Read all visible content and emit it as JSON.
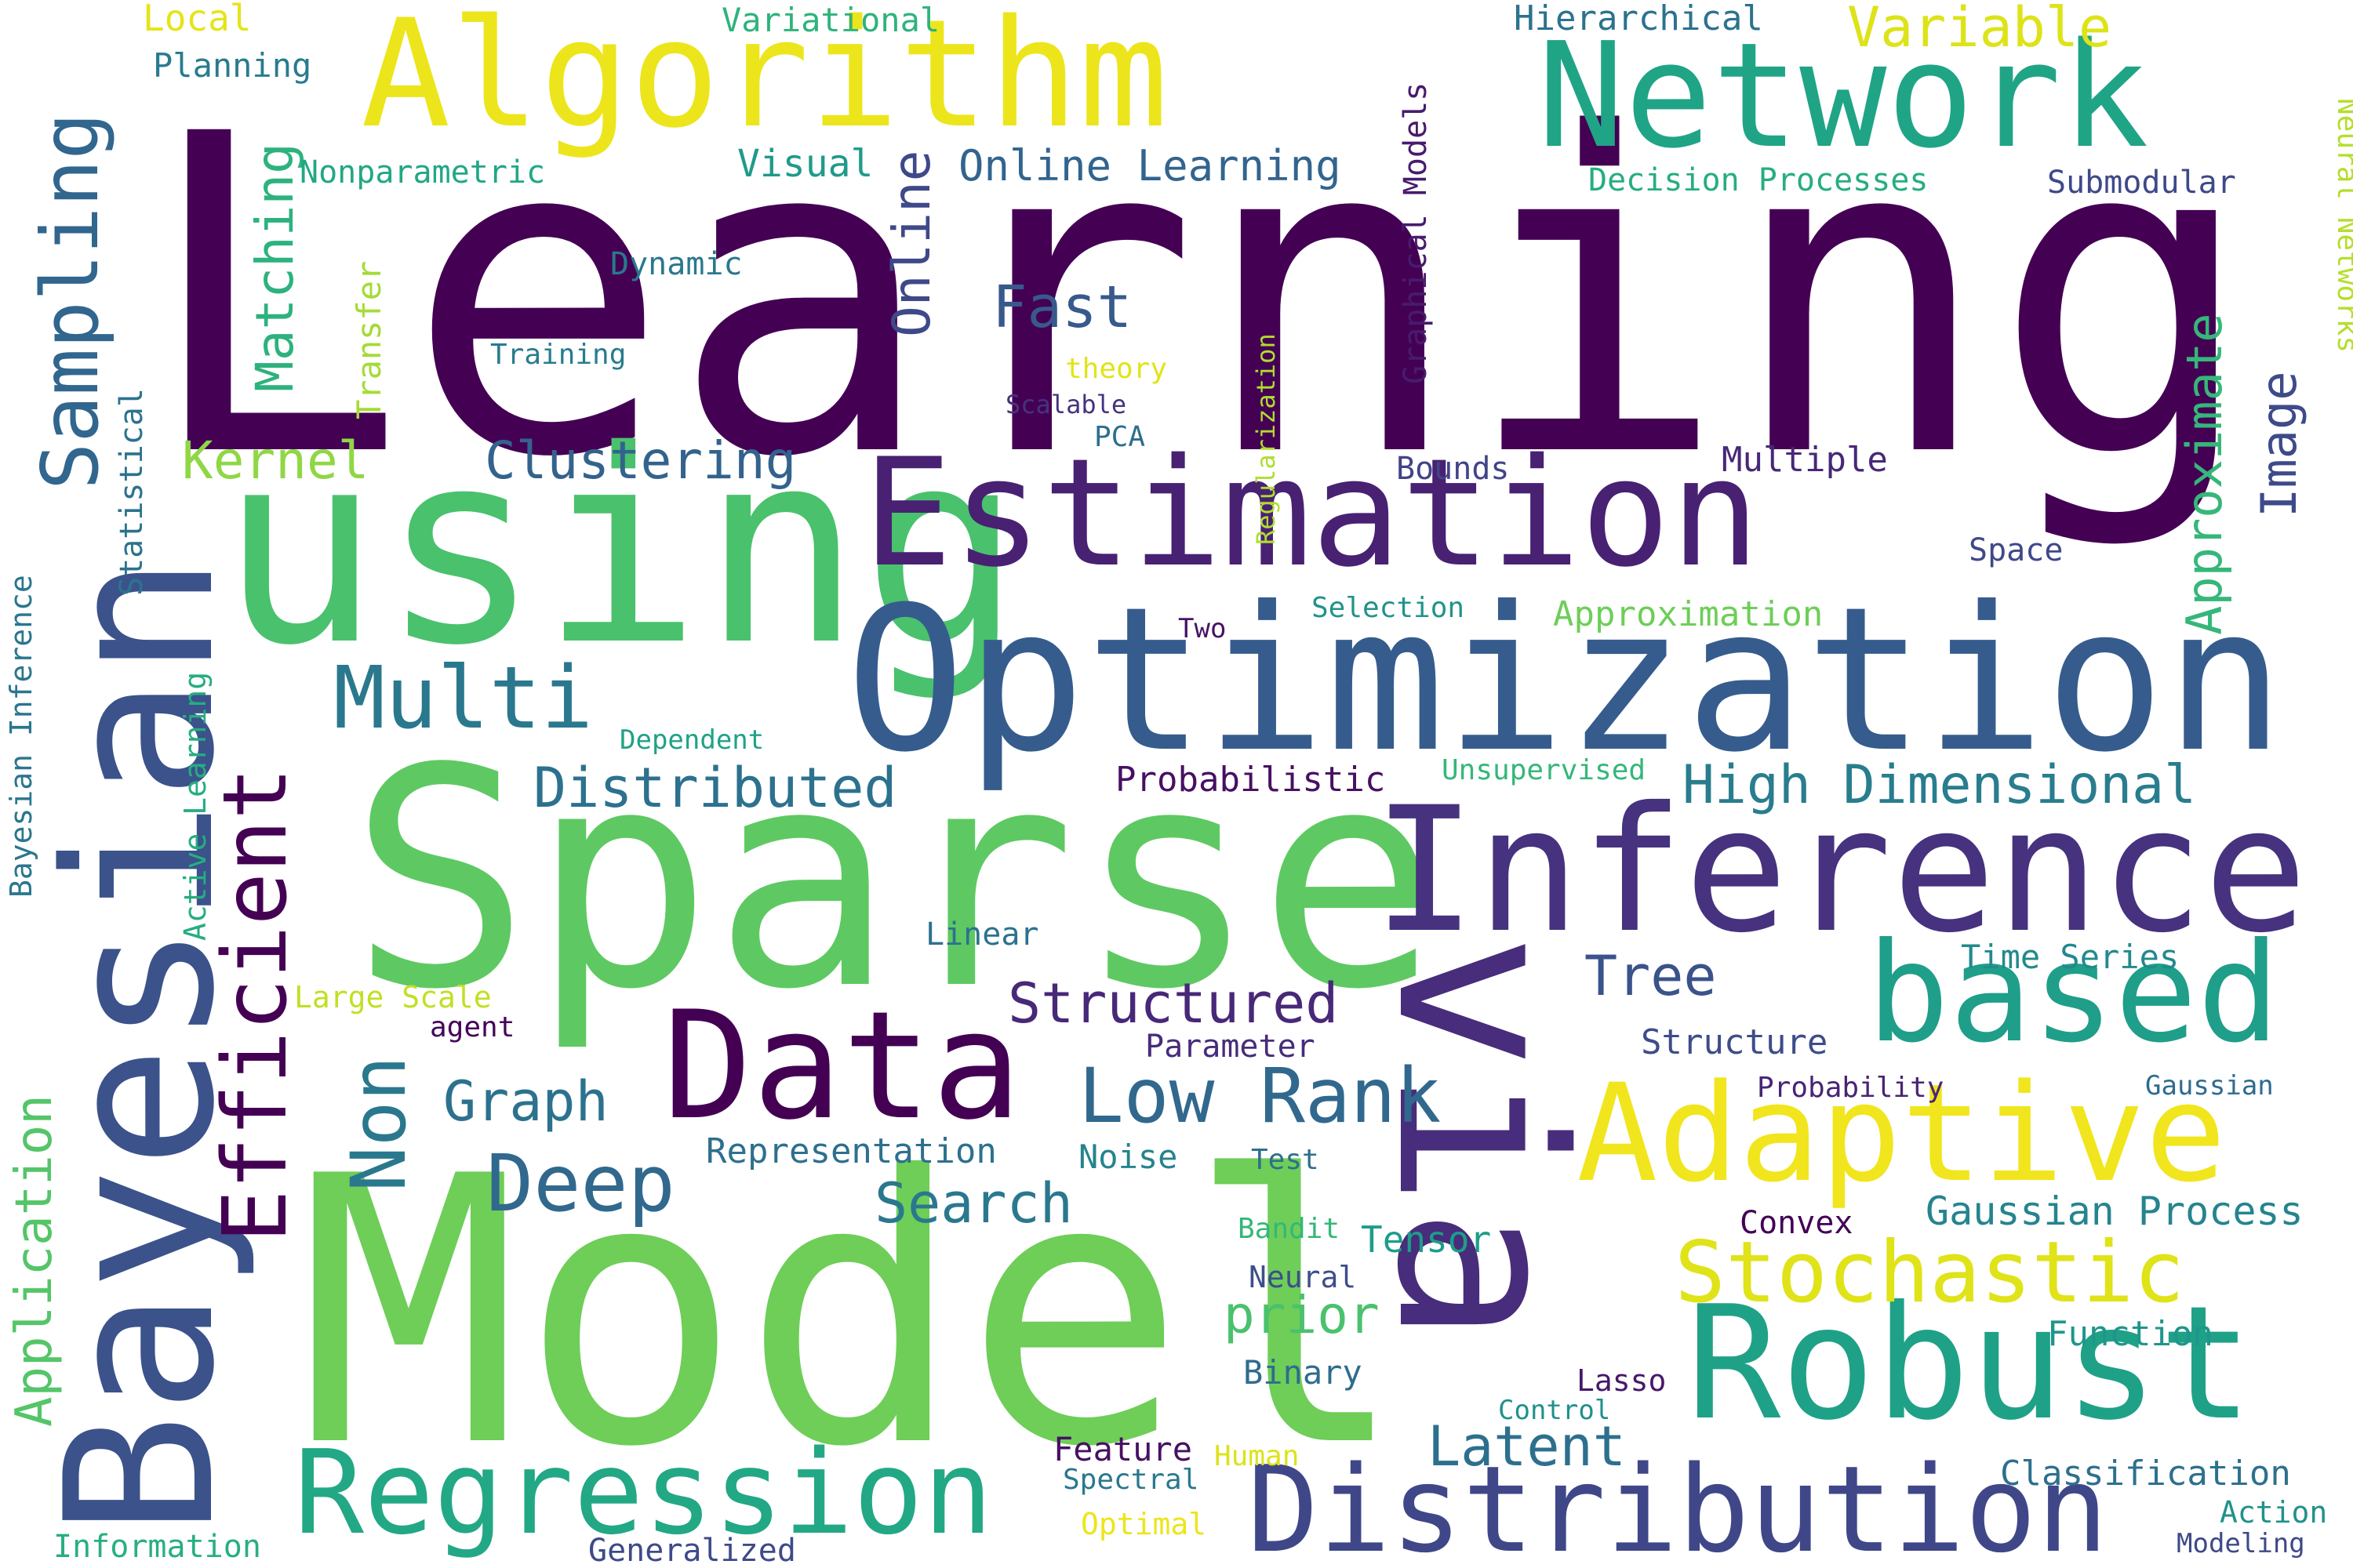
{
  "words": [
    {
      "text": "Learning",
      "color": "#440154"
    },
    {
      "text": "Model",
      "color": "#6ece58"
    },
    {
      "text": "Sparse",
      "color": "#5ec962"
    },
    {
      "text": "using",
      "color": "#4ac16d"
    },
    {
      "text": "Optimization",
      "color": "#365c8d"
    },
    {
      "text": "via",
      "color": "#472d7b"
    },
    {
      "text": "Inference",
      "color": "#46327e"
    },
    {
      "text": "Bayesian",
      "color": "#3b528b"
    },
    {
      "text": "Algorithm",
      "color": "#ece51b"
    },
    {
      "text": "Estimation",
      "color": "#482173"
    },
    {
      "text": "Network",
      "color": "#20a486"
    },
    {
      "text": "Robust",
      "color": "#1fa187"
    },
    {
      "text": "Adaptive",
      "color": "#f1e51d"
    },
    {
      "text": "Data",
      "color": "#440154"
    },
    {
      "text": "based",
      "color": "#1f9e89"
    },
    {
      "text": "Distribution",
      "color": "#3f4788"
    },
    {
      "text": "Regression",
      "color": "#22a884"
    },
    {
      "text": "Efficient",
      "color": "#440154"
    },
    {
      "text": "Sampling",
      "color": "#31668e"
    },
    {
      "text": "Stochastic",
      "color": "#dfe318"
    },
    {
      "text": "Multi",
      "color": "#2a788e"
    },
    {
      "text": "Deep",
      "color": "#31688e"
    },
    {
      "text": "Low Rank",
      "color": "#31688e"
    },
    {
      "text": "High Dimensional",
      "color": "#287d8e"
    },
    {
      "text": "Approximate",
      "color": "#35b779"
    },
    {
      "text": "Clustering",
      "color": "#33638d"
    },
    {
      "text": "Kernel",
      "color": "#8fd744"
    },
    {
      "text": "Matching",
      "color": "#2db27d"
    },
    {
      "text": "Application",
      "color": "#54c568"
    },
    {
      "text": "Non",
      "color": "#2a788e"
    },
    {
      "text": "Distributed",
      "color": "#2c718e"
    },
    {
      "text": "Structured",
      "color": "#482878"
    },
    {
      "text": "Graph",
      "color": "#2c728e"
    },
    {
      "text": "Search",
      "color": "#2a788e"
    },
    {
      "text": "Latent",
      "color": "#2d708e"
    },
    {
      "text": "Tree",
      "color": "#3b528b"
    },
    {
      "text": "Fast",
      "color": "#38598c"
    },
    {
      "text": "Online",
      "color": "#3e4989"
    },
    {
      "text": "Online Learning",
      "color": "#32648e"
    },
    {
      "text": "Image",
      "color": "#3e4a89"
    },
    {
      "text": "prior",
      "color": "#4ac16d"
    },
    {
      "text": "Gaussian Process",
      "color": "#25848e"
    },
    {
      "text": "Variable",
      "color": "#dde318"
    },
    {
      "text": "Local",
      "color": "#e5e419"
    },
    {
      "text": "Planning",
      "color": "#297b8e"
    },
    {
      "text": "Variational",
      "color": "#2eb37c"
    },
    {
      "text": "Hierarchical",
      "color": "#2c728e"
    },
    {
      "text": "Graphical Models",
      "color": "#481b6d"
    },
    {
      "text": "Neural Networks",
      "color": "#b5de2b"
    },
    {
      "text": "Submodular",
      "color": "#3e4989"
    },
    {
      "text": "Decision Processes",
      "color": "#26ad81"
    },
    {
      "text": "Visual",
      "color": "#1f9a8a"
    },
    {
      "text": "Nonparametric",
      "color": "#22a785"
    },
    {
      "text": "Dynamic",
      "color": "#2a788e"
    },
    {
      "text": "Transfer",
      "color": "#a5db36"
    },
    {
      "text": "Training",
      "color": "#287c8e"
    },
    {
      "text": "Statistical",
      "color": "#2c738e"
    },
    {
      "text": "theory",
      "color": "#e2e418"
    },
    {
      "text": "Scalable",
      "color": "#46337f"
    },
    {
      "text": "PCA",
      "color": "#2e6e8e"
    },
    {
      "text": "Regularization",
      "color": "#b0dd2f"
    },
    {
      "text": "Bounds",
      "color": "#414487"
    },
    {
      "text": "Multiple",
      "color": "#482878"
    },
    {
      "text": "Space",
      "color": "#3f4889"
    },
    {
      "text": "Selection",
      "color": "#20938c"
    },
    {
      "text": "Approximation",
      "color": "#6ece58"
    },
    {
      "text": "Two",
      "color": "#471365"
    },
    {
      "text": "Bayesian Inference",
      "color": "#2a768e"
    },
    {
      "text": "Active Learning",
      "color": "#26ad81"
    },
    {
      "text": "Dependent",
      "color": "#1fa287"
    },
    {
      "text": "Probabilistic",
      "color": "#471063"
    },
    {
      "text": "Unsupervised",
      "color": "#35b779"
    },
    {
      "text": "Linear",
      "color": "#2d718e"
    },
    {
      "text": "Time Series",
      "color": "#23898e"
    },
    {
      "text": "Large Scale",
      "color": "#c2df23"
    },
    {
      "text": "agent",
      "color": "#450559"
    },
    {
      "text": "Parameter",
      "color": "#472c7a"
    },
    {
      "text": "Structure",
      "color": "#3e4c8a"
    },
    {
      "text": "Probability",
      "color": "#482475"
    },
    {
      "text": "Gaussian",
      "color": "#2f6b8e"
    },
    {
      "text": "Representation",
      "color": "#2d708e"
    },
    {
      "text": "Noise",
      "color": "#25838e"
    },
    {
      "text": "Test",
      "color": "#2e6f8e"
    },
    {
      "text": "Convex",
      "color": "#440154"
    },
    {
      "text": "Bandit",
      "color": "#35b779"
    },
    {
      "text": "Tensor",
      "color": "#1e9d89"
    },
    {
      "text": "Neural",
      "color": "#3d4e8a"
    },
    {
      "text": "Function",
      "color": "#1f968b"
    },
    {
      "text": "Binary",
      "color": "#2f6c8e"
    },
    {
      "text": "Lasso",
      "color": "#48186a"
    },
    {
      "text": "Control",
      "color": "#21908d"
    },
    {
      "text": "Feature",
      "color": "#471063"
    },
    {
      "text": "Human",
      "color": "#dde318"
    },
    {
      "text": "Spectral",
      "color": "#2a788e"
    },
    {
      "text": "Optimal",
      "color": "#ece51b"
    },
    {
      "text": "Classification",
      "color": "#2d708e"
    },
    {
      "text": "Action",
      "color": "#21918c"
    },
    {
      "text": "Modeling",
      "color": "#3e4989"
    },
    {
      "text": "Information",
      "color": "#29af7f"
    },
    {
      "text": "Generalized",
      "color": "#3e4a89"
    }
  ]
}
